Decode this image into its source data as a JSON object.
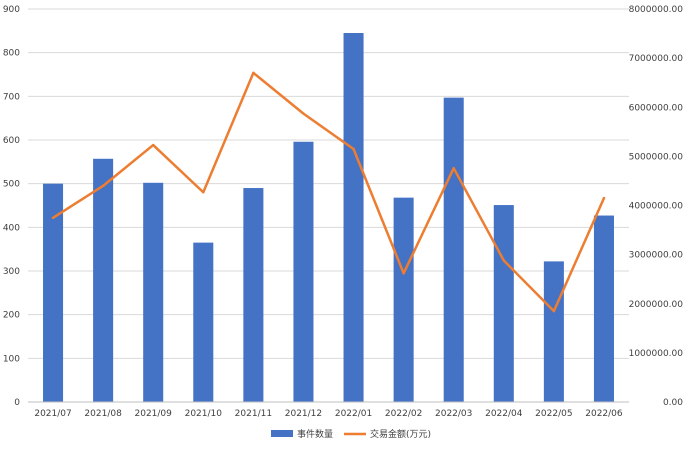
{
  "chart_data": {
    "type": "bar",
    "categories": [
      "2021/07",
      "2021/08",
      "2021/09",
      "2021/10",
      "2021/11",
      "2021/12",
      "2022/01",
      "2022/02",
      "2022/03",
      "2022/04",
      "2022/05",
      "2022/06"
    ],
    "series": [
      {
        "name": "事件数量",
        "type": "bar",
        "axis": "left",
        "color": "#4472C4",
        "values": [
          500,
          557,
          502,
          365,
          490,
          596,
          845,
          468,
          697,
          451,
          322,
          427
        ]
      },
      {
        "name": "交易金额(万元)",
        "type": "line",
        "axis": "right",
        "color": "#ED7D31",
        "values": [
          3750000,
          4400000,
          5230000,
          4270000,
          6700000,
          5870000,
          5150000,
          2620000,
          4760000,
          2880000,
          1850000,
          4150000
        ]
      }
    ],
    "y_left": {
      "ylim": [
        0,
        900
      ],
      "ticks": [
        "0",
        "100",
        "200",
        "300",
        "400",
        "500",
        "600",
        "700",
        "800",
        "900"
      ]
    },
    "y_right": {
      "ylim": [
        0,
        8000000
      ],
      "ticks": [
        "0.00",
        "1000000.00",
        "2000000.00",
        "3000000.00",
        "4000000.00",
        "5000000.00",
        "6000000.00",
        "7000000.00",
        "8000000.00"
      ]
    },
    "grid": true,
    "legend_position": "bottom",
    "title": "",
    "xlabel": "",
    "ylabel": ""
  }
}
